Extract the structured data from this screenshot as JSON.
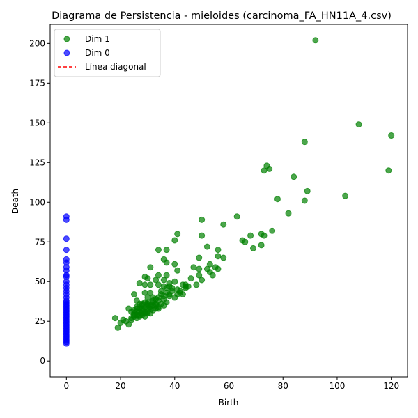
{
  "chart_data": {
    "type": "scatter",
    "title": "Diagrama de Persistencia - mieloides (carcinoma_FA_HN11A_4.csv)",
    "xlabel": "Birth",
    "ylabel": "Death",
    "xlim": [
      -6,
      126
    ],
    "ylim": [
      -10,
      212
    ],
    "x_ticks": [
      0,
      20,
      40,
      60,
      80,
      100,
      120
    ],
    "y_ticks": [
      0,
      25,
      50,
      75,
      100,
      125,
      150,
      175,
      200
    ],
    "grid": false,
    "legend_position": "upper-left",
    "legend": [
      {
        "label": "Dim 1",
        "kind": "marker",
        "color": "#008000"
      },
      {
        "label": "Dim 0",
        "kind": "marker",
        "color": "#0000ff"
      },
      {
        "label": "Línea diagonal",
        "kind": "dashed-line",
        "color": "#ff0000"
      }
    ],
    "series": [
      {
        "name": "Dim 1",
        "color": "#008000",
        "points": [
          [
            92,
            202
          ],
          [
            108,
            149
          ],
          [
            120,
            142
          ],
          [
            88,
            138
          ],
          [
            74,
            123
          ],
          [
            73,
            120
          ],
          [
            75,
            121
          ],
          [
            119,
            120
          ],
          [
            84,
            116
          ],
          [
            89,
            107
          ],
          [
            103,
            104
          ],
          [
            78,
            102
          ],
          [
            88,
            101
          ],
          [
            82,
            93
          ],
          [
            63,
            91
          ],
          [
            50,
            89
          ],
          [
            58,
            86
          ],
          [
            41,
            80
          ],
          [
            72,
            80
          ],
          [
            76,
            82
          ],
          [
            50,
            79
          ],
          [
            73,
            79
          ],
          [
            68,
            79
          ],
          [
            40,
            76
          ],
          [
            65,
            76
          ],
          [
            66,
            75
          ],
          [
            72,
            73
          ],
          [
            52,
            72
          ],
          [
            69,
            71
          ],
          [
            34,
            70
          ],
          [
            37,
            70
          ],
          [
            56,
            70
          ],
          [
            49,
            65
          ],
          [
            56,
            66
          ],
          [
            58,
            65
          ],
          [
            36,
            64
          ],
          [
            37,
            62
          ],
          [
            40,
            61
          ],
          [
            53,
            61
          ],
          [
            55,
            59
          ],
          [
            31,
            59
          ],
          [
            47,
            59
          ],
          [
            49,
            58
          ],
          [
            52,
            58
          ],
          [
            56,
            58
          ],
          [
            41,
            57
          ],
          [
            53,
            56
          ],
          [
            49,
            54
          ],
          [
            54,
            54
          ],
          [
            29,
            53
          ],
          [
            34,
            54
          ],
          [
            37,
            54
          ],
          [
            30,
            52
          ],
          [
            33,
            51
          ],
          [
            36,
            51
          ],
          [
            46,
            52
          ],
          [
            50,
            51
          ],
          [
            27,
            49
          ],
          [
            29,
            48
          ],
          [
            31,
            48
          ],
          [
            34,
            48
          ],
          [
            38,
            49
          ],
          [
            40,
            50
          ],
          [
            43,
            48
          ],
          [
            45,
            47
          ],
          [
            48,
            48
          ],
          [
            36,
            47
          ],
          [
            37,
            46
          ],
          [
            38,
            47
          ],
          [
            39,
            46
          ],
          [
            41,
            45
          ],
          [
            42,
            44
          ],
          [
            44,
            46
          ],
          [
            44,
            48
          ],
          [
            25,
            42
          ],
          [
            29,
            43
          ],
          [
            31,
            43
          ],
          [
            35,
            42
          ],
          [
            37,
            43
          ],
          [
            38,
            41
          ],
          [
            40,
            40
          ],
          [
            41,
            42
          ],
          [
            43,
            42
          ],
          [
            30,
            40
          ],
          [
            32,
            40
          ],
          [
            33,
            39
          ],
          [
            34,
            38
          ],
          [
            36,
            39
          ],
          [
            37,
            37
          ],
          [
            26,
            38
          ],
          [
            27,
            36
          ],
          [
            28,
            35
          ],
          [
            29,
            37
          ],
          [
            30,
            36
          ],
          [
            31,
            35
          ],
          [
            32,
            37
          ],
          [
            33,
            35
          ],
          [
            34,
            34
          ],
          [
            35,
            36
          ],
          [
            36,
            35
          ],
          [
            18,
            27
          ],
          [
            19,
            21
          ],
          [
            20,
            24
          ],
          [
            21,
            26
          ],
          [
            22,
            25
          ],
          [
            23,
            23
          ],
          [
            24,
            26
          ],
          [
            25,
            28
          ],
          [
            26,
            27
          ],
          [
            27,
            29
          ],
          [
            28,
            30
          ],
          [
            29,
            28
          ],
          [
            30,
            31
          ],
          [
            31,
            30
          ],
          [
            32,
            32
          ],
          [
            33,
            33
          ],
          [
            34,
            33
          ],
          [
            23,
            33
          ],
          [
            24,
            31
          ],
          [
            25,
            32
          ],
          [
            26,
            34
          ],
          [
            27,
            33
          ],
          [
            28,
            32
          ],
          [
            29,
            34
          ],
          [
            30,
            35
          ],
          [
            31,
            33
          ],
          [
            24,
            27
          ],
          [
            25,
            30
          ],
          [
            26,
            31
          ],
          [
            27,
            31
          ],
          [
            28,
            33
          ],
          [
            29,
            31
          ],
          [
            30,
            33
          ],
          [
            31,
            34
          ],
          [
            32,
            35
          ],
          [
            33,
            36
          ],
          [
            25,
            29
          ],
          [
            26,
            29
          ],
          [
            27,
            28
          ],
          [
            28,
            29
          ],
          [
            29,
            30
          ],
          [
            30,
            30
          ],
          [
            26,
            33
          ],
          [
            28,
            36
          ],
          [
            30,
            37
          ],
          [
            32,
            38
          ],
          [
            34,
            40
          ],
          [
            36,
            41
          ],
          [
            38,
            42
          ],
          [
            35,
            44
          ],
          [
            39,
            44
          ],
          [
            42,
            43
          ],
          [
            44,
            47
          ]
        ]
      },
      {
        "name": "Dim 0",
        "color": "#0000ff",
        "points": [
          [
            0,
            91
          ],
          [
            0,
            89
          ],
          [
            0,
            77
          ],
          [
            0,
            70
          ],
          [
            0,
            64
          ],
          [
            0,
            62
          ],
          [
            0,
            59
          ],
          [
            0,
            57
          ],
          [
            0,
            54
          ],
          [
            0,
            53
          ],
          [
            0,
            50
          ],
          [
            0,
            48
          ],
          [
            0,
            46
          ],
          [
            0,
            44
          ],
          [
            0,
            42
          ],
          [
            0,
            40
          ],
          [
            0,
            38
          ],
          [
            0,
            37
          ],
          [
            0,
            36
          ],
          [
            0,
            35
          ],
          [
            0,
            34
          ],
          [
            0,
            33
          ],
          [
            0,
            32
          ],
          [
            0,
            31
          ],
          [
            0,
            30
          ],
          [
            0,
            29
          ],
          [
            0,
            28
          ],
          [
            0,
            27
          ],
          [
            0,
            26
          ],
          [
            0,
            25
          ],
          [
            0,
            24
          ],
          [
            0,
            23
          ],
          [
            0,
            22
          ],
          [
            0,
            21
          ],
          [
            0,
            20
          ],
          [
            0,
            19
          ],
          [
            0,
            18
          ],
          [
            0,
            17
          ],
          [
            0,
            16
          ],
          [
            0,
            15
          ],
          [
            0,
            14
          ],
          [
            0,
            13
          ],
          [
            0,
            12
          ],
          [
            0,
            11
          ]
        ]
      }
    ]
  }
}
